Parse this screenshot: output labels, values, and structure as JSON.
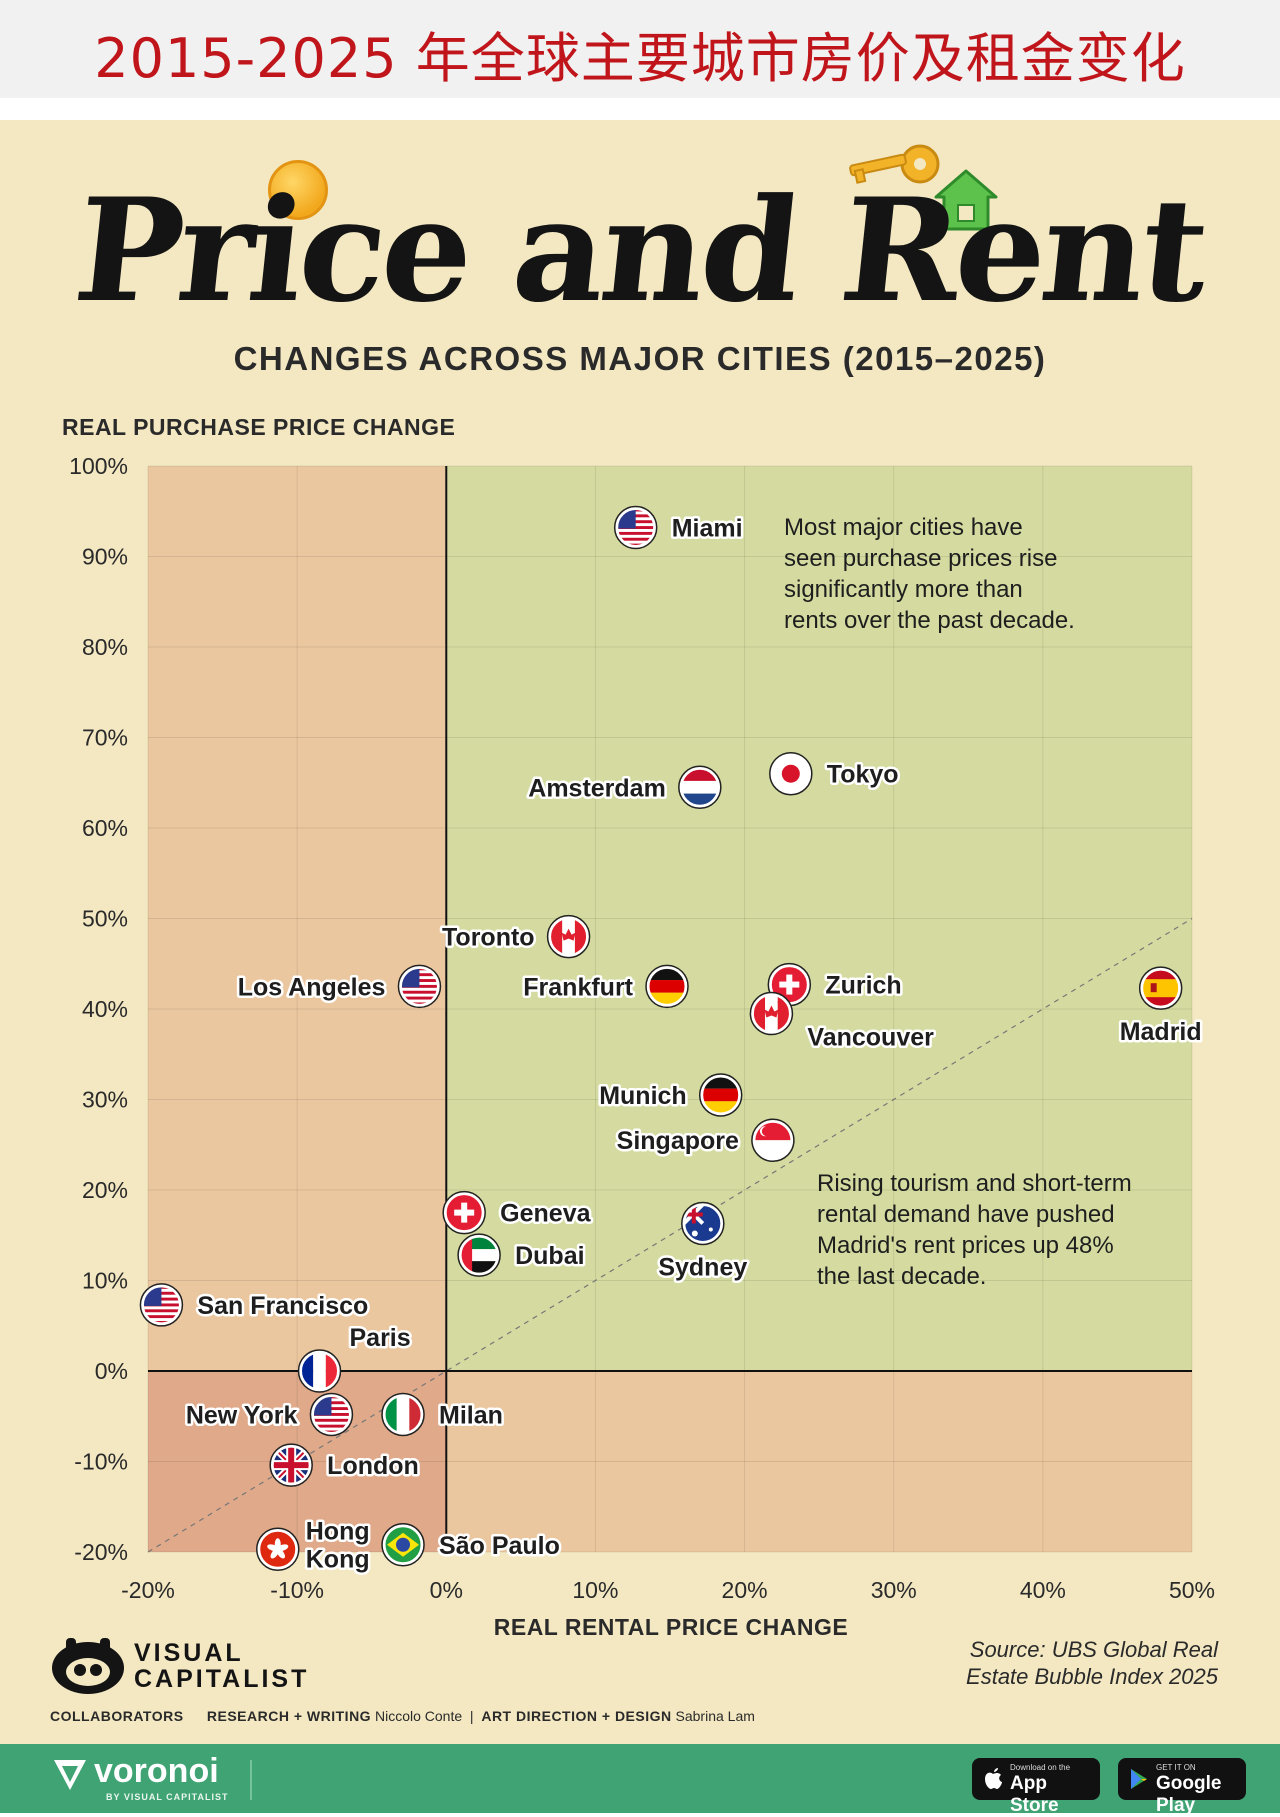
{
  "banner": {
    "title": "2015-2025 年全球主要城市房价及租金变化"
  },
  "header": {
    "title": "Price and Rent",
    "subtitle": "CHANGES ACROSS MAJOR CITIES (2015–2025)"
  },
  "chart_data": {
    "type": "scatter",
    "title": "Price and Rent",
    "subtitle": "CHANGES ACROSS MAJOR CITIES (2015–2025)",
    "xlabel": "REAL RENTAL PRICE CHANGE",
    "ylabel": "REAL PURCHASE PRICE CHANGE",
    "xlim": [
      -20,
      50
    ],
    "ylim": [
      -20,
      100
    ],
    "x_ticks": [
      -20,
      -10,
      0,
      10,
      20,
      30,
      40,
      50
    ],
    "y_ticks": [
      -20,
      -10,
      0,
      10,
      20,
      30,
      40,
      50,
      60,
      70,
      80,
      90,
      100
    ],
    "x_tick_labels": [
      "-20%",
      "-10%",
      "0%",
      "10%",
      "20%",
      "30%",
      "40%",
      "50%"
    ],
    "y_tick_labels": [
      "-20%",
      "-10%",
      "0%",
      "10%",
      "20%",
      "30%",
      "40%",
      "50%",
      "60%",
      "70%",
      "80%",
      "90%",
      "100%"
    ],
    "reference_line": "y = x (dashed)",
    "quadrant_colors": {
      "positive_price": "#d5dba0",
      "negative": "#ebc7a0",
      "negative_both": "#dfa98a"
    },
    "points": [
      {
        "city": "Miami",
        "x": 12.7,
        "y": 93.2,
        "flag": "usa-flag-icon",
        "label_side": "right"
      },
      {
        "city": "Tokyo",
        "x": 23.1,
        "y": 66.0,
        "flag": "japan-flag-icon",
        "label_side": "right"
      },
      {
        "city": "Amsterdam",
        "x": 17.0,
        "y": 64.5,
        "flag": "netherlands-flag-icon",
        "label_side": "left"
      },
      {
        "city": "Toronto",
        "x": 8.2,
        "y": 48.0,
        "flag": "canada-flag-icon",
        "label_side": "left"
      },
      {
        "city": "Los Angeles",
        "x": -1.8,
        "y": 42.5,
        "flag": "usa-flag-icon",
        "label_side": "left"
      },
      {
        "city": "Frankfurt",
        "x": 14.8,
        "y": 42.5,
        "flag": "germany-flag-icon",
        "label_side": "left"
      },
      {
        "city": "Zurich",
        "x": 23.0,
        "y": 42.7,
        "flag": "switzerland-flag-icon",
        "label_side": "right"
      },
      {
        "city": "Vancouver",
        "x": 21.8,
        "y": 39.5,
        "flag": "canada-flag-icon",
        "label_side": "below-right"
      },
      {
        "city": "Madrid",
        "x": 47.9,
        "y": 42.3,
        "flag": "spain-flag-icon",
        "label_side": "below"
      },
      {
        "city": "Munich",
        "x": 18.4,
        "y": 30.5,
        "flag": "germany-flag-icon",
        "label_side": "left"
      },
      {
        "city": "Singapore",
        "x": 21.9,
        "y": 25.5,
        "flag": "singapore-flag-icon",
        "label_side": "left"
      },
      {
        "city": "Geneva",
        "x": 1.2,
        "y": 17.5,
        "flag": "switzerland-flag-icon",
        "label_side": "right"
      },
      {
        "city": "Sydney",
        "x": 17.2,
        "y": 16.3,
        "flag": "australia-flag-icon",
        "label_side": "below"
      },
      {
        "city": "Dubai",
        "x": 2.2,
        "y": 12.8,
        "flag": "uae-flag-icon",
        "label_side": "right"
      },
      {
        "city": "San Francisco",
        "x": -19.1,
        "y": 7.3,
        "flag": "usa-flag-icon",
        "label_side": "right"
      },
      {
        "city": "Paris",
        "x": -8.5,
        "y": 0.0,
        "flag": "france-flag-icon",
        "label_side": "above-right"
      },
      {
        "city": "New York",
        "x": -7.7,
        "y": -4.8,
        "flag": "usa-flag-icon",
        "label_side": "left"
      },
      {
        "city": "Milan",
        "x": -2.9,
        "y": -4.8,
        "flag": "italy-flag-icon",
        "label_side": "right"
      },
      {
        "city": "London",
        "x": -10.4,
        "y": -10.4,
        "flag": "uk-flag-icon",
        "label_side": "right"
      },
      {
        "city": "Hong Kong",
        "x": -11.3,
        "y": -19.7,
        "flag": "hongkong-flag-icon",
        "label_side": "right-stacked"
      },
      {
        "city": "São Paulo",
        "x": -2.9,
        "y": -19.2,
        "flag": "brazil-flag-icon",
        "label_side": "right"
      }
    ],
    "annotations": [
      "Most major cities have seen purchase prices rise significantly more than rents over the past decade.",
      "Rising tourism and short-term rental demand have pushed Madrid's rent prices up 48% the last decade."
    ]
  },
  "annotations": {
    "top": [
      "Most major cities have",
      "seen purchase prices rise",
      "significantly more than",
      "rents over the past decade."
    ],
    "madrid": [
      "Rising tourism and short-term",
      "rental demand have pushed",
      "Madrid's rent prices up 48%",
      "the last decade."
    ]
  },
  "branding": {
    "logo_line1": "VISUAL",
    "logo_line2": "CAPITALIST",
    "source_line1": "Source: UBS Global Real",
    "source_line2": "Estate Bubble Index 2025",
    "collaborators": "COLLABORATORS",
    "research_label": "RESEARCH + WRITING",
    "research_name": "Niccolo Conte",
    "separator": "|",
    "design_label": "ART DIRECTION + DESIGN",
    "design_name": "Sabrina Lam"
  },
  "footer": {
    "brand": "voronoi",
    "brand_sub": "BY VISUAL CAPITALIST",
    "appstore_small": "Download on the",
    "appstore_big": "App Store",
    "googleplay_small": "GET IT ON",
    "googleplay_big": "Google Play",
    "colors": {
      "background": "#3fa373"
    }
  }
}
